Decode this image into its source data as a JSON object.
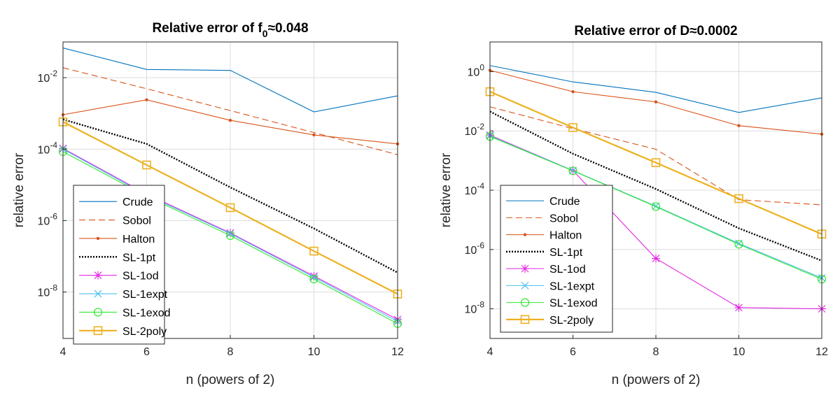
{
  "chart_data": [
    {
      "type": "line",
      "title": "Relative error of f",
      "title_subscript": "0",
      "title_suffix": "≈0.048",
      "xlabel": "n (powers of 2)",
      "ylabel": "relative error",
      "xlim": [
        4,
        12
      ],
      "ylim_log10": [
        -9.3,
        -1
      ],
      "yscale": "log",
      "xticks": [
        "4",
        "6",
        "8",
        "10",
        "12"
      ],
      "yticks": [
        {
          "base": "10",
          "exp": "-2"
        },
        {
          "base": "10",
          "exp": "-4"
        },
        {
          "base": "10",
          "exp": "-6"
        },
        {
          "base": "10",
          "exp": "-8"
        }
      ],
      "ytick_exps": [
        -2,
        -4,
        -6,
        -8
      ],
      "grid": true,
      "legend_position": "bottom-left",
      "x": [
        4,
        6,
        8,
        10,
        12
      ],
      "series": [
        {
          "name": "Crude",
          "color": "#0072BD",
          "style": "solid",
          "marker": "none",
          "values": [
            0.068,
            0.017,
            0.016,
            0.0011,
            0.0031
          ]
        },
        {
          "name": "Sobol",
          "color": "#D95319",
          "style": "dashed",
          "marker": "none",
          "values": [
            0.019,
            0.0049,
            0.0012,
            0.00029,
            7e-05
          ]
        },
        {
          "name": "Halton",
          "color": "#D95319",
          "style": "solid",
          "marker": "dot",
          "values": [
            0.00092,
            0.0024,
            0.00064,
            0.00025,
            0.00014
          ]
        },
        {
          "name": "SL-1pt",
          "color": "#000000",
          "style": "dotted",
          "marker": "none",
          "values": [
            0.00068,
            0.00014,
            8.5e-06,
            6e-07,
            3.5e-08
          ]
        },
        {
          "name": "SL-1od",
          "color": "#E327E3",
          "style": "solid",
          "marker": "star",
          "values": [
            0.000105,
            5.5e-06,
            4.5e-07,
            2.8e-08,
            1.7e-09
          ]
        },
        {
          "name": "SL-1expt",
          "color": "#4DBEEE",
          "style": "solid",
          "marker": "x",
          "values": [
            0.0001,
            5.2e-06,
            4.3e-07,
            2.6e-08,
            1.5e-09
          ]
        },
        {
          "name": "SL-1exod",
          "color": "#33E633",
          "style": "solid",
          "marker": "circle",
          "values": [
            8.5e-05,
            4.8e-06,
            3.8e-07,
            2.3e-08,
            1.3e-09
          ]
        },
        {
          "name": "SL-2poly",
          "color": "#EDB120",
          "style": "solid-thick",
          "marker": "square",
          "values": [
            0.00058,
            3.6e-05,
            2.3e-06,
            1.4e-07,
            8.8e-09
          ]
        }
      ]
    },
    {
      "type": "line",
      "title": "Relative error of D≈0.0002",
      "xlabel": "n (powers of 2)",
      "ylabel": "relative error",
      "xlim": [
        4,
        12
      ],
      "ylim_log10": [
        -9,
        1
      ],
      "yscale": "log",
      "xticks": [
        "4",
        "6",
        "8",
        "10",
        "12"
      ],
      "yticks": [
        {
          "base": "10",
          "exp": "0"
        },
        {
          "base": "10",
          "exp": "-2"
        },
        {
          "base": "10",
          "exp": "-4"
        },
        {
          "base": "10",
          "exp": "-6"
        },
        {
          "base": "10",
          "exp": "-8"
        }
      ],
      "ytick_exps": [
        0,
        -2,
        -4,
        -6,
        -8
      ],
      "grid": true,
      "legend_position": "bottom-left",
      "x": [
        4,
        6,
        8,
        10,
        12
      ],
      "series": [
        {
          "name": "Crude",
          "color": "#0072BD",
          "style": "solid",
          "marker": "none",
          "values": [
            1.6,
            0.45,
            0.2,
            0.042,
            0.13
          ]
        },
        {
          "name": "Sobol",
          "color": "#D95319",
          "style": "dashed",
          "marker": "none",
          "values": [
            0.065,
            0.012,
            0.0024,
            4.8e-05,
            3.2e-05
          ]
        },
        {
          "name": "Halton",
          "color": "#D95319",
          "style": "solid",
          "marker": "dot",
          "values": [
            1.1,
            0.21,
            0.095,
            0.015,
            0.0078
          ]
        },
        {
          "name": "SL-1pt",
          "color": "#000000",
          "style": "dotted",
          "marker": "none",
          "values": [
            0.045,
            0.0017,
            0.00011,
            5.2e-06,
            4.2e-07
          ]
        },
        {
          "name": "SL-1od",
          "color": "#E327E3",
          "style": "solid",
          "marker": "star",
          "values": [
            0.0072,
            0.00046,
            5e-07,
            1.1e-08,
            1e-08
          ]
        },
        {
          "name": "SL-1expt",
          "color": "#4DBEEE",
          "style": "solid",
          "marker": "x",
          "values": [
            0.0068,
            0.00046,
            2.9e-05,
            1.6e-06,
            1.1e-07
          ]
        },
        {
          "name": "SL-1exod",
          "color": "#33E633",
          "style": "solid",
          "marker": "circle",
          "values": [
            0.0065,
            0.00045,
            2.8e-05,
            1.5e-06,
            1e-07
          ]
        },
        {
          "name": "SL-2poly",
          "color": "#EDB120",
          "style": "solid-thick",
          "marker": "square",
          "values": [
            0.21,
            0.013,
            0.00085,
            5.2e-05,
            3.3e-06
          ]
        }
      ]
    }
  ]
}
